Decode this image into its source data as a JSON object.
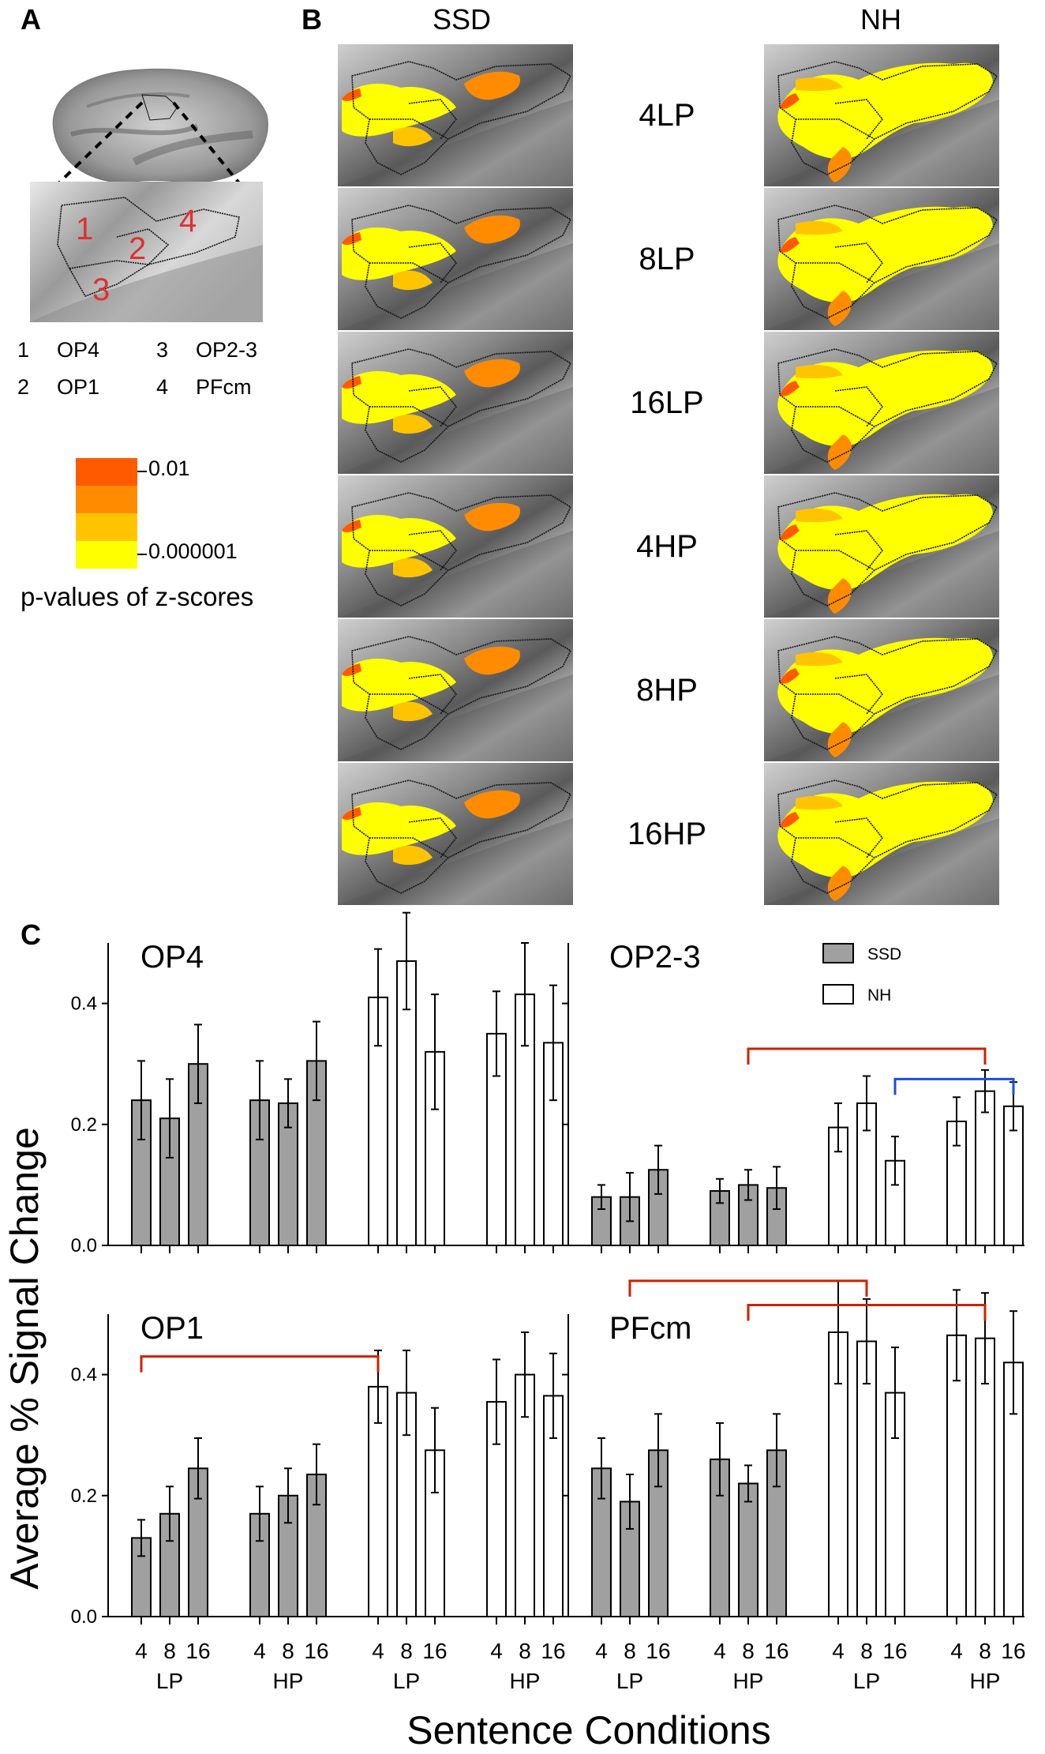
{
  "panel_labels": {
    "a": "A",
    "b": "B",
    "c": "C"
  },
  "panel_a": {
    "brain_numbers": [
      "1",
      "2",
      "3",
      "4"
    ],
    "regions": [
      {
        "num": "1",
        "name": "OP4"
      },
      {
        "num": "2",
        "name": "OP1"
      },
      {
        "num": "3",
        "name": "OP2-3"
      },
      {
        "num": "4",
        "name": "PFcm"
      }
    ],
    "scale_top": "0.01",
    "scale_bottom": "0.000001",
    "scale_title": "p-values of z-scores",
    "scale_colors": [
      "#ff5a00",
      "#ff8c00",
      "#ffc400",
      "#ffff00"
    ]
  },
  "panel_b": {
    "col_ssd": "SSD",
    "col_nh": "NH",
    "conditions": [
      "4LP",
      "8LP",
      "16LP",
      "4HP",
      "8HP",
      "16HP"
    ]
  },
  "chart_data": [
    {
      "type": "bar",
      "title": "OP4",
      "categories": [
        "4 LP",
        "8 LP",
        "16 LP",
        "4 HP",
        "8 HP",
        "16 HP"
      ],
      "series": [
        {
          "name": "SSD",
          "values": [
            0.24,
            0.21,
            0.3,
            0.24,
            0.235,
            0.305
          ],
          "errors": [
            0.065,
            0.065,
            0.065,
            0.065,
            0.04,
            0.065
          ]
        },
        {
          "name": "NH",
          "values": [
            0.41,
            0.47,
            0.32,
            0.35,
            0.415,
            0.335
          ],
          "errors": [
            0.08,
            0.08,
            0.095,
            0.07,
            0.085,
            0.095
          ]
        }
      ],
      "ylim": [
        0,
        0.5
      ],
      "yticks": [
        "0.0",
        "0.2",
        "0.4"
      ],
      "brackets": []
    },
    {
      "type": "bar",
      "title": "OP2-3",
      "categories": [
        "4 LP",
        "8 LP",
        "16 LP",
        "4 HP",
        "8 HP",
        "16 HP"
      ],
      "series": [
        {
          "name": "SSD",
          "values": [
            0.08,
            0.08,
            0.125,
            0.09,
            0.1,
            0.095
          ],
          "errors": [
            0.02,
            0.04,
            0.04,
            0.02,
            0.025,
            0.035
          ]
        },
        {
          "name": "NH",
          "values": [
            0.195,
            0.235,
            0.14,
            0.205,
            0.255,
            0.23
          ],
          "errors": [
            0.04,
            0.045,
            0.04,
            0.04,
            0.035,
            0.04
          ]
        }
      ],
      "ylim": [
        0,
        0.5
      ],
      "yticks": [
        "0.0",
        "0.2",
        "0.4"
      ],
      "legend": [
        "SSD",
        "NH"
      ],
      "brackets": [
        {
          "from": "SSD 8 HP",
          "to": "NH 8 HP",
          "level": 0.325,
          "color": "#cc2200"
        },
        {
          "from": "NH 16 LP",
          "to": "NH 16 HP",
          "level": 0.275,
          "color": "#1a4fd6"
        }
      ]
    },
    {
      "type": "bar",
      "title": "OP1",
      "categories": [
        "4 LP",
        "8 LP",
        "16 LP",
        "4 HP",
        "8 HP",
        "16 HP"
      ],
      "series": [
        {
          "name": "SSD",
          "values": [
            0.13,
            0.17,
            0.245,
            0.17,
            0.2,
            0.235
          ],
          "errors": [
            0.03,
            0.045,
            0.05,
            0.045,
            0.045,
            0.05
          ]
        },
        {
          "name": "NH",
          "values": [
            0.38,
            0.37,
            0.275,
            0.355,
            0.4,
            0.365
          ],
          "errors": [
            0.06,
            0.07,
            0.07,
            0.07,
            0.07,
            0.07
          ]
        }
      ],
      "ylim": [
        0,
        0.5
      ],
      "yticks": [
        "0.0",
        "0.2",
        "0.4"
      ],
      "brackets": [
        {
          "from": "SSD 4 LP",
          "to": "NH 4 LP",
          "level": 0.43,
          "color": "#cc2200"
        }
      ]
    },
    {
      "type": "bar",
      "title": "PFcm",
      "categories": [
        "4 LP",
        "8 LP",
        "16 LP",
        "4 HP",
        "8 HP",
        "16 HP"
      ],
      "series": [
        {
          "name": "SSD",
          "values": [
            0.245,
            0.19,
            0.275,
            0.26,
            0.22,
            0.275
          ],
          "errors": [
            0.05,
            0.045,
            0.06,
            0.06,
            0.03,
            0.06
          ]
        },
        {
          "name": "NH",
          "values": [
            0.47,
            0.455,
            0.37,
            0.465,
            0.46,
            0.42
          ],
          "errors": [
            0.085,
            0.07,
            0.075,
            0.075,
            0.075,
            0.085
          ]
        }
      ],
      "ylim": [
        0,
        0.5
      ],
      "yticks": [
        "0.0",
        "0.2",
        "0.4"
      ],
      "brackets": [
        {
          "from": "SSD 8 LP",
          "to": "NH 8 LP",
          "level": 0.555,
          "color": "#cc2200"
        },
        {
          "from": "SSD 8 HP",
          "to": "NH 8 HP",
          "level": 0.515,
          "color": "#cc2200"
        }
      ]
    }
  ],
  "axes": {
    "ylabel": "Average % Signal Change",
    "xlabel": "Sentence Conditions",
    "tick_numbers": [
      "4",
      "8",
      "16"
    ],
    "group_labels": [
      "LP",
      "HP",
      "LP",
      "HP"
    ]
  },
  "colors": {
    "ssd_bar": "#a0a0a0",
    "nh_bar": "#ffffff",
    "red": "#cc2200",
    "blue": "#1a4fd6"
  }
}
